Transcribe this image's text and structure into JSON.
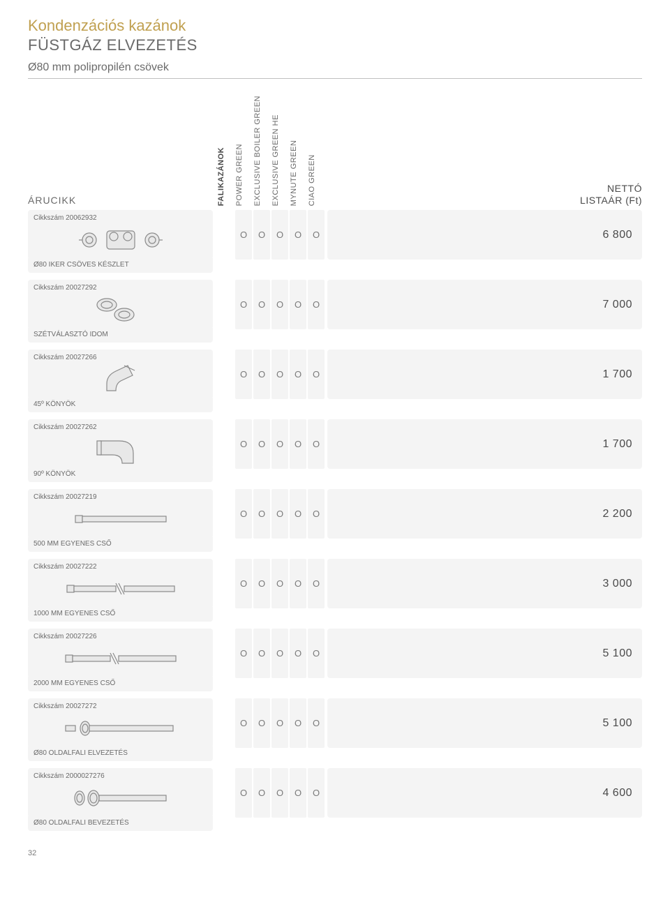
{
  "header": {
    "title1": "Kondenzációs kazánok",
    "title1_color": "#c0a050",
    "title2": "FÜSTGÁZ ELVEZETÉS",
    "title2_color": "#6a6a6a",
    "subtitle": "Ø80 mm polipropilén csövek",
    "subtitle_color": "#6a6a6a",
    "arucikk_label": "ÁRUCIKK",
    "price_head_line1": "NETTÓ",
    "price_head_line2": "LISTAÁR (Ft)"
  },
  "columns": [
    "FALIKAZÁNOK",
    "POWER GREEN",
    "EXCLUSIVE BOILER GREEN",
    "EXCLUSIVE GREEN HE",
    "MYNUTE GREEN",
    "CIAO GREEN"
  ],
  "mark_char": "O",
  "colors": {
    "panel_bg": "#f4f4f4",
    "text": "#4a4a4a",
    "muted": "#6a6a6a"
  },
  "items": [
    {
      "code": "Cikkszám 20062932",
      "desc": "Ø80 IKER CSÖVES KÉSZLET",
      "price": "6 800",
      "svg": "twin1"
    },
    {
      "code": "Cikkszám 20027292",
      "desc": "SZÉTVÁLASZTÓ IDOM",
      "price": "7 000",
      "svg": "twin2"
    },
    {
      "code": "Cikkszám 20027266",
      "desc": "45º KÖNYÖK",
      "price": "1 700",
      "svg": "elbow45"
    },
    {
      "code": "Cikkszám 20027262",
      "desc": "90º KÖNYÖK",
      "price": "1 700",
      "svg": "elbow90"
    },
    {
      "code": "Cikkszám 20027219",
      "desc": "500 MM EGYENES CSŐ",
      "price": "2 200",
      "svg": "pipe-short"
    },
    {
      "code": "Cikkszám 20027222",
      "desc": "1000 MM EGYENES CSŐ",
      "price": "3 000",
      "svg": "pipe-med"
    },
    {
      "code": "Cikkszám 20027226",
      "desc": "2000 MM EGYENES CSŐ",
      "price": "5 100",
      "svg": "pipe-long"
    },
    {
      "code": "Cikkszám 20027272",
      "desc": "Ø80 OLDALFALI ELVEZETÉS",
      "price": "5 100",
      "svg": "wall-out"
    },
    {
      "code": "Cikkszám 2000027276",
      "desc": "Ø80 OLDALFALI BEVEZETÉS",
      "price": "4 600",
      "svg": "wall-in"
    }
  ],
  "page_number": "32"
}
